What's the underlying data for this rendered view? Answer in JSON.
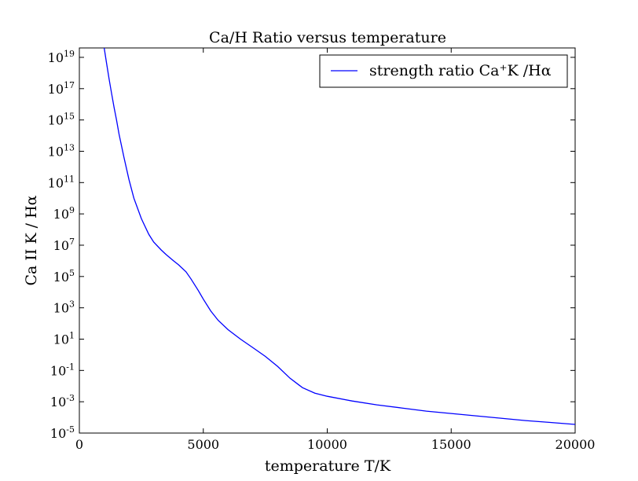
{
  "chart_data": {
    "type": "line",
    "title": "Ca/H Ratio versus temperature",
    "xlabel": "temperature T/K",
    "ylabel": "Ca II K / Hα",
    "xlim": [
      0,
      20000
    ],
    "ylim_log10": [
      -5,
      19.6
    ],
    "yscale": "log",
    "grid": false,
    "legend_position": "top-right",
    "x_ticks": [
      0,
      5000,
      10000,
      15000,
      20000
    ],
    "x_tick_labels": [
      "0",
      "5000",
      "10000",
      "15000",
      "20000"
    ],
    "y_tick_exponents": [
      -5,
      -3,
      -1,
      1,
      3,
      5,
      7,
      9,
      11,
      13,
      15,
      17,
      19
    ],
    "y_tick_labels": [
      "10-5",
      "10-3",
      "10-1",
      "101",
      "103",
      "105",
      "107",
      "109",
      "1011",
      "1013",
      "1015",
      "1017",
      "1019"
    ],
    "series": [
      {
        "name": "strength ratio Ca⁺K /Hα",
        "color": "#0000ff",
        "x": [
          1000,
          1100,
          1200,
          1300,
          1400,
          1500,
          1600,
          1800,
          2000,
          2200,
          2500,
          2800,
          3000,
          3300,
          3500,
          3800,
          4000,
          4300,
          4500,
          4800,
          5000,
          5300,
          5600,
          6000,
          6500,
          7000,
          7500,
          8000,
          8500,
          9000,
          9500,
          10000,
          11000,
          12000,
          13000,
          14000,
          15000,
          16000,
          17000,
          18000,
          19000,
          20000
        ],
        "y_log10": [
          19.6,
          18.6,
          17.6,
          16.7,
          15.8,
          15.0,
          14.1,
          12.6,
          11.2,
          10.0,
          8.7,
          7.7,
          7.2,
          6.7,
          6.4,
          6.0,
          5.75,
          5.3,
          4.85,
          4.1,
          3.55,
          2.8,
          2.2,
          1.6,
          1.0,
          0.45,
          -0.1,
          -0.75,
          -1.5,
          -2.1,
          -2.45,
          -2.65,
          -2.95,
          -3.2,
          -3.4,
          -3.6,
          -3.75,
          -3.9,
          -4.05,
          -4.2,
          -4.32,
          -4.45
        ]
      }
    ]
  }
}
